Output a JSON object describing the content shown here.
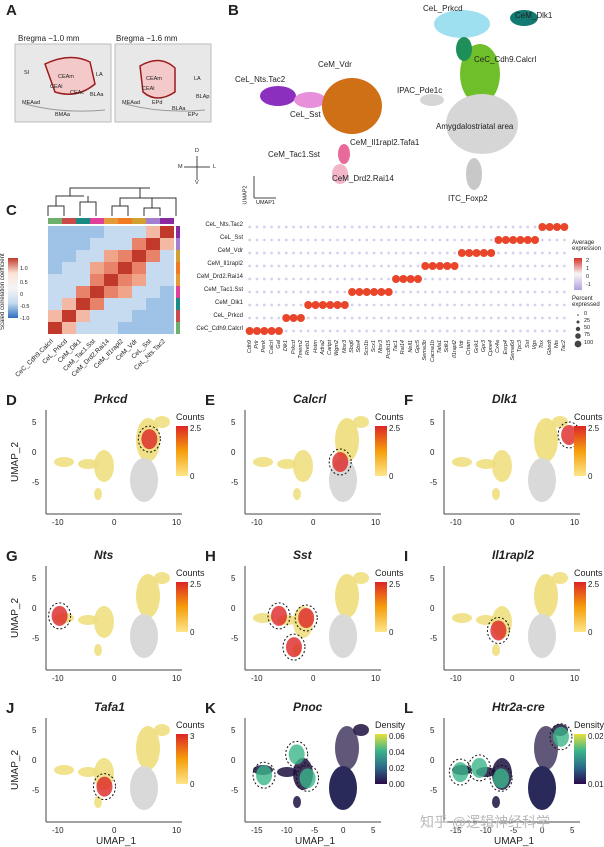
{
  "panels": {
    "A": {
      "letter": "A",
      "bregma_left": "Bregma −1.0 mm",
      "bregma_right": "Bregma −1.6 mm",
      "regions_left": [
        "SI",
        "CEAm",
        "CEAl",
        "CEAc",
        "LA",
        "MEAad",
        "BLAa",
        "BMAa"
      ],
      "regions_right": [
        "CEAm",
        "CEAl",
        "LA",
        "BLAa",
        "BLAp",
        "MEAad",
        "EPd",
        "EPv"
      ],
      "compass": {
        "d": "D",
        "v": "V",
        "m": "M",
        "l": "L"
      }
    },
    "B": {
      "letter": "B",
      "labels": [
        "CeL_Prkcd",
        "CeM_Dlk1",
        "CeC_Cdh9.Calcrl",
        "CeL_Nts.Tac2",
        "CeM_Vdr",
        "CeL_Sst",
        "IPAC_Pde1c",
        "Amygdalostriatal area",
        "CeM_Il1rapl2.Tafa1",
        "CeM_Tac1.Sst",
        "CeM_Drd2.Rai14",
        "ITC_Foxp2"
      ],
      "axis_y": "UMAP2",
      "axis_x": "UMAP1"
    },
    "C": {
      "letter": "C",
      "scale_title": "Scaled correlation coefficient",
      "scale_ticks": [
        "1.0",
        "0.5",
        "0",
        "-0.5",
        "-1.0"
      ],
      "heatmap_labels": [
        "CeC_Cdh9.Calcrl",
        "CeL_Prkcd",
        "CeM_Dlk1",
        "CeM_Tac1.Sst",
        "CeM_Drd2.Rai14",
        "CeM_Il1rapl2",
        "CeM_Vdr",
        "CeL_Sst",
        "CeL_Nts.Tac2"
      ],
      "dot_rows": [
        "CeL_Nts.Tac2",
        "CeL_Sst",
        "CeM_Vdr",
        "CeM_Il1rapl2",
        "CeM_Drd2.Rai14",
        "CeM_Tac1.Sst",
        "CeM_Dlk1",
        "CeL_Prkcd",
        "CeC_Cdh9.Calcrl"
      ],
      "dot_genes": [
        "Cdh9",
        "Prlr",
        "Penk",
        "Calcrl",
        "Gal",
        "Dlk1",
        "Prkcd",
        "Tmem2",
        "Rreb1",
        "Hstm",
        "Adra2",
        "Cartpt",
        "Wgm2",
        "Ntsr3",
        "Sbq6",
        "Sbs4",
        "Scn1b",
        "Scx1",
        "Ntsr3",
        "Pcdh15",
        "Tac1",
        "Rai14",
        "Nell1",
        "Gpc5",
        "Sema3b",
        "Cacna1b",
        "Tafa1",
        "Sdk1",
        "Il1rapl2",
        "Vdr",
        "Crtam",
        "Grik1",
        "Gpr3",
        "Cpne4",
        "Cx4a",
        "Esrp4",
        "Sema6d",
        "Tpc3",
        "Sst",
        "Vgs",
        "Tox",
        "Gbedt",
        "Nts",
        "Tac2"
      ],
      "avg_expr_title": "Average expression",
      "avg_expr_ticks": [
        "2",
        "1",
        "0",
        "-1"
      ],
      "pct_title": "Percent expressed",
      "pct_values": [
        "0",
        "25",
        "50",
        "75",
        "100"
      ]
    },
    "D": {
      "letter": "D",
      "gene": "Prkcd",
      "legend": "Counts",
      "max": "2.5",
      "min": "0"
    },
    "E": {
      "letter": "E",
      "gene": "Calcrl",
      "legend": "Counts",
      "max": "2.5",
      "min": "0"
    },
    "F": {
      "letter": "F",
      "gene": "Dlk1",
      "legend": "Counts",
      "max": "2.5",
      "min": "0"
    },
    "G": {
      "letter": "G",
      "gene": "Nts",
      "legend": "Counts",
      "max": "2.5",
      "min": "0"
    },
    "H": {
      "letter": "H",
      "gene": "Sst",
      "legend": "Counts",
      "max": "2.5",
      "min": "0"
    },
    "I": {
      "letter": "I",
      "gene": "Il1rapl2",
      "legend": "Counts",
      "max": "2.5",
      "min": "0"
    },
    "J": {
      "letter": "J",
      "gene": "Tafa1",
      "legend": "Counts",
      "max": "3",
      "min": "0"
    },
    "K": {
      "letter": "K",
      "gene": "Pnoc",
      "legend": "Density",
      "ticks": [
        "0.06",
        "0.04",
        "0.02",
        "0.00"
      ]
    },
    "L": {
      "letter": "L",
      "gene": "Htr2a-cre",
      "legend": "Density",
      "ticks": [
        "0.02",
        "0.01"
      ]
    }
  },
  "umap_axes": {
    "ylabel": "UMAP_2",
    "xlabel": "UMAP_1",
    "xticks": [
      "-10",
      "0",
      "10"
    ],
    "yticks": [
      "5",
      "0",
      "-5"
    ],
    "xticks_kl": [
      "-15",
      "-10",
      "-5",
      "0",
      "5"
    ]
  },
  "watermark": "知乎 @逻辑神经科学",
  "colors": {
    "count_low": "#fde68a",
    "count_high": "#dc2626",
    "density_low": "#2a0a4a",
    "density_high": "#e8e03a",
    "outline": "#9b1c1c"
  }
}
